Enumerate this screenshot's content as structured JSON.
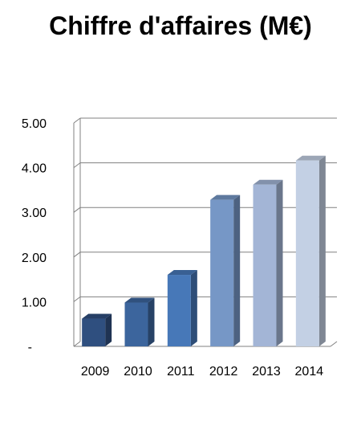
{
  "chart_data": {
    "type": "bar",
    "title": "Chiffre d'affaires (M€)",
    "categories": [
      "2009",
      "2010",
      "2011",
      "2012",
      "2013",
      "2014"
    ],
    "values": [
      0.62,
      0.98,
      1.6,
      3.28,
      3.62,
      4.16
    ],
    "ylim": [
      0,
      5
    ],
    "y_ticks": [
      {
        "value": 0,
        "label": "-"
      },
      {
        "value": 1,
        "label": "1.00"
      },
      {
        "value": 2,
        "label": "2.00"
      },
      {
        "value": 3,
        "label": "3.00"
      },
      {
        "value": 4,
        "label": "4.00"
      },
      {
        "value": 5,
        "label": "5.00"
      }
    ],
    "grid": true,
    "bar_colors": [
      "#2f4f7f",
      "#3c659d",
      "#4778b8",
      "#7697c6",
      "#a3b5d6",
      "#c3d0e4"
    ]
  }
}
